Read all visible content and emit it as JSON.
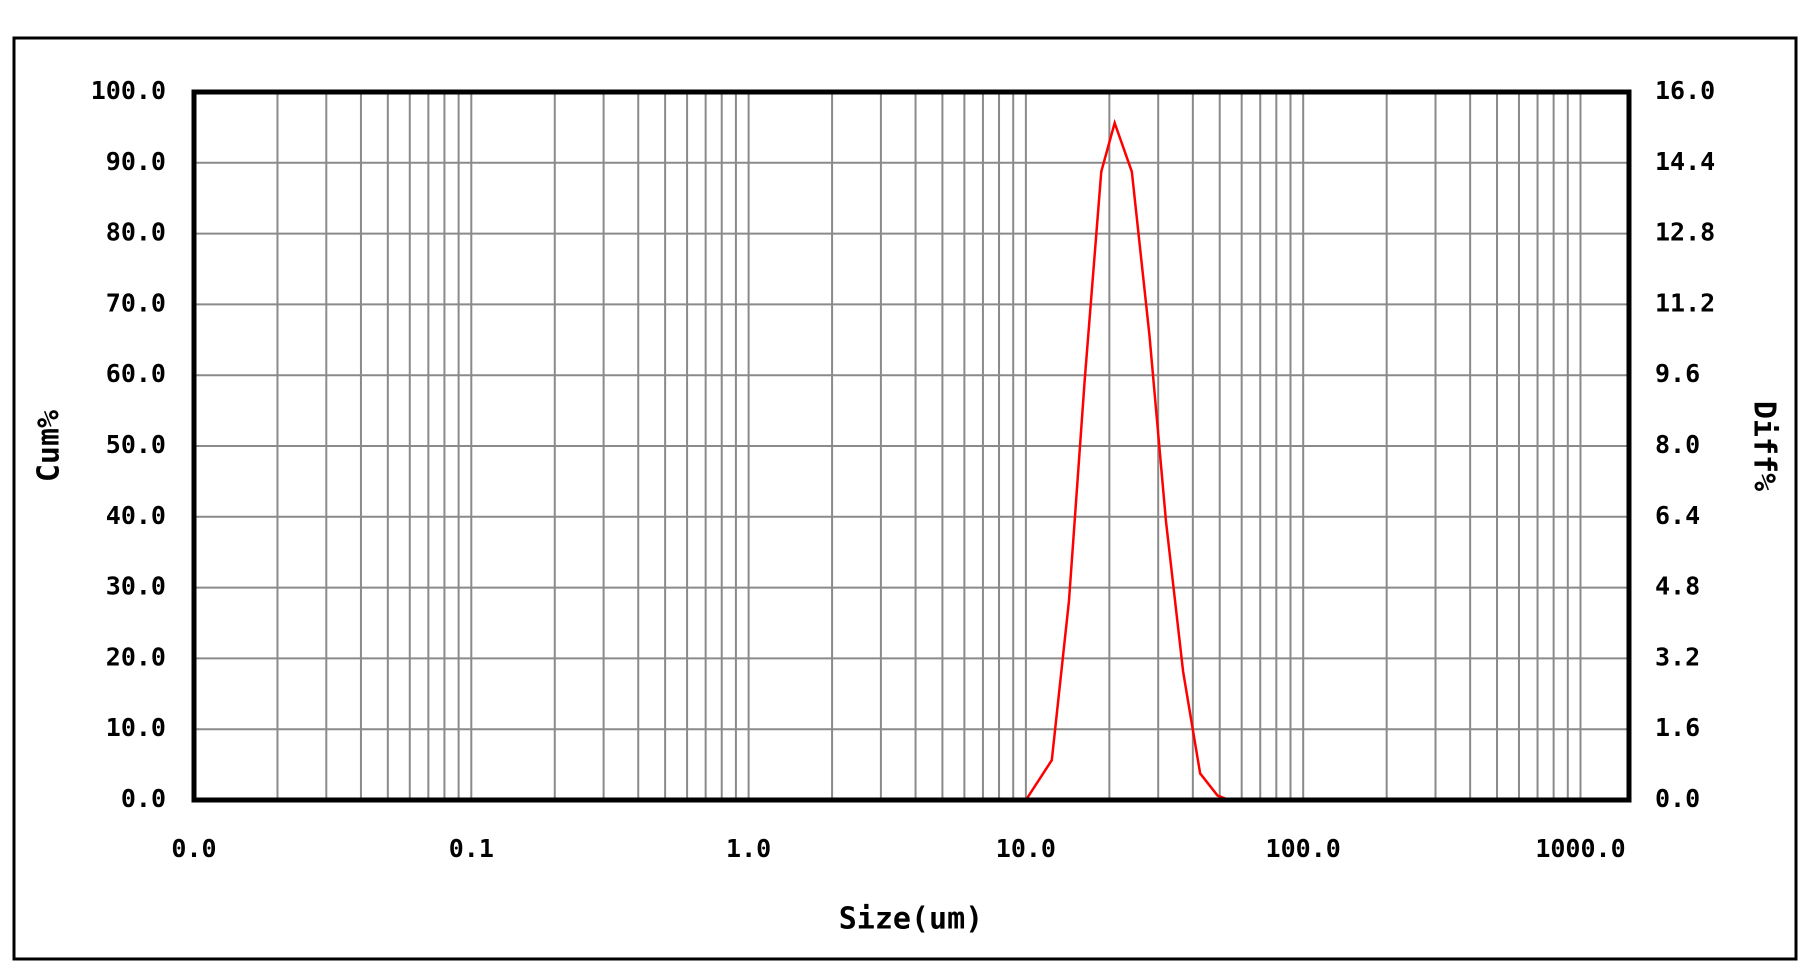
{
  "chart_data": {
    "type": "line",
    "x_label": "Size(um)",
    "y_label": "Cum%",
    "y2_label": "Diff%",
    "xscale": "log",
    "grid": true,
    "xlim": [
      0.01,
      1496
    ],
    "ylim": [
      0,
      100
    ],
    "y2lim": [
      0,
      16
    ],
    "xticks": [
      {
        "value": 0.01,
        "label": "0.0"
      },
      0.1,
      {
        "value": 1,
        "label": "1.0"
      },
      {
        "value": 10,
        "label": "10.0"
      },
      {
        "value": 100,
        "label": "100.0"
      },
      {
        "value": 1000,
        "label": "1000.0"
      }
    ],
    "xminorticks": [
      0.02,
      0.03,
      0.04,
      0.05,
      0.06,
      0.07,
      0.08,
      0.09,
      0.2,
      0.3,
      0.4,
      0.5,
      0.6,
      0.7,
      0.8,
      0.9,
      2,
      3,
      4,
      5,
      6,
      7,
      8,
      9,
      20,
      30,
      40,
      50,
      60,
      70,
      80,
      90,
      200,
      300,
      400,
      500,
      600,
      700,
      800,
      900
    ],
    "yticks": [
      {
        "value": 0,
        "label": "0.0"
      },
      {
        "value": 10,
        "label": "10.0"
      },
      {
        "value": 20,
        "label": "20.0"
      },
      {
        "value": 30,
        "label": "30.0"
      },
      {
        "value": 40,
        "label": "40.0"
      },
      {
        "value": 50,
        "label": "50.0"
      },
      {
        "value": 60,
        "label": "60.0"
      },
      {
        "value": 70,
        "label": "70.0"
      },
      {
        "value": 80,
        "label": "80.0"
      },
      {
        "value": 90,
        "label": "90.0"
      },
      {
        "value": 100,
        "label": "100.0"
      }
    ],
    "y2ticks": [
      {
        "value": 0,
        "label": "0.0"
      },
      1.6,
      3.2,
      4.8,
      6.4,
      {
        "value": 8,
        "label": "8.0"
      },
      9.6,
      11.2,
      12.8,
      14.4,
      {
        "value": 16,
        "label": "16.0"
      }
    ],
    "x": [
      0.04,
      10,
      12.4,
      14.3,
      16.3,
      18.7,
      20.9,
      24.1,
      27.9,
      32.0,
      36.9,
      42.5,
      49.1,
      54,
      1000
    ],
    "series": [
      {
        "name": "Diff%",
        "color": "#ff0000",
        "axis": "y2",
        "values": [
          0,
          0,
          0.9,
          4.5,
          9.5,
          14.2,
          15.3,
          14.2,
          10.5,
          6.3,
          2.9,
          0.6,
          0.1,
          0,
          0
        ]
      }
    ]
  }
}
